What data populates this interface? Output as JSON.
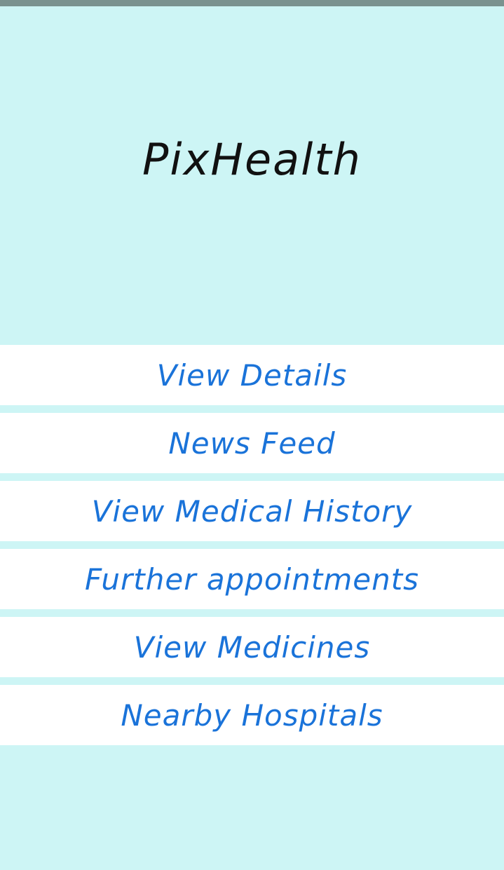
{
  "app": {
    "title": "PixHealth"
  },
  "menu": {
    "items": [
      {
        "label": "View Details"
      },
      {
        "label": "News Feed"
      },
      {
        "label": "View Medical History"
      },
      {
        "label": "Further appointments"
      },
      {
        "label": "View Medicines"
      },
      {
        "label": "Nearby Hospitals"
      }
    ]
  },
  "colors": {
    "background": "#cdf5f5",
    "status_bar": "#7a928f",
    "menu_item_bg": "#ffffff",
    "menu_text": "#1a73d9",
    "title_text": "#111111"
  }
}
